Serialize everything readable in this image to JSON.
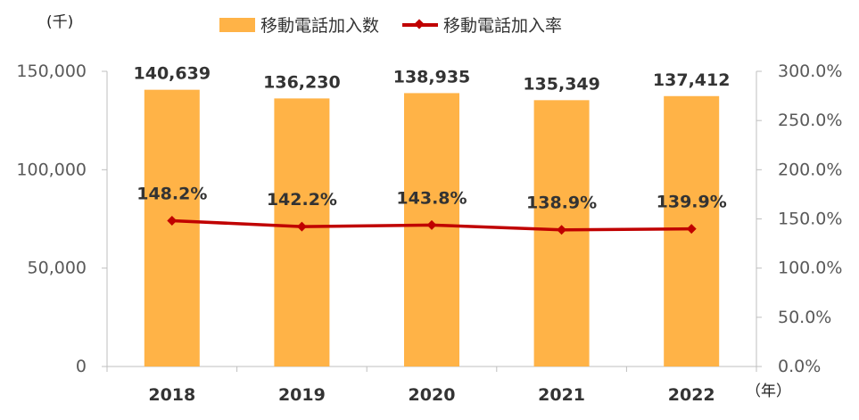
{
  "legend": {
    "bar_label": "移動電話加入数",
    "line_label": "移動電話加入率"
  },
  "units": {
    "y_left": "(千)",
    "x": "（年）"
  },
  "colors": {
    "bar": "#FFB347",
    "line": "#C00000",
    "axis": "#BFBFBF",
    "tick_text": "#595959",
    "data_label": "#333333"
  },
  "chart_data": {
    "type": "bar",
    "categories": [
      "2018",
      "2019",
      "2020",
      "2021",
      "2022"
    ],
    "series": [
      {
        "name": "移動電話加入数",
        "type": "bar",
        "axis": "left",
        "values": [
          140639,
          136230,
          138935,
          135349,
          137412
        ],
        "labels": [
          "140,639",
          "136,230",
          "138,935",
          "135,349",
          "137,412"
        ]
      },
      {
        "name": "移動電話加入率",
        "type": "line",
        "axis": "right",
        "values": [
          148.2,
          142.2,
          143.8,
          138.9,
          139.9
        ],
        "labels": [
          "148.2%",
          "142.2%",
          "143.8%",
          "138.9%",
          "139.9%"
        ]
      }
    ],
    "y_left": {
      "lim": [
        0,
        150000
      ],
      "ticks": [
        0,
        50000,
        100000,
        150000
      ],
      "tick_labels": [
        "0",
        "50,000",
        "100,000",
        "150,000"
      ]
    },
    "y_right": {
      "lim": [
        0,
        300
      ],
      "ticks": [
        0,
        50,
        100,
        150,
        200,
        250,
        300
      ],
      "tick_labels": [
        "0.0%",
        "50.0%",
        "100.0%",
        "150.0%",
        "200.0%",
        "250.0%",
        "300.0%"
      ]
    },
    "grid": false,
    "legend_position": "top"
  }
}
